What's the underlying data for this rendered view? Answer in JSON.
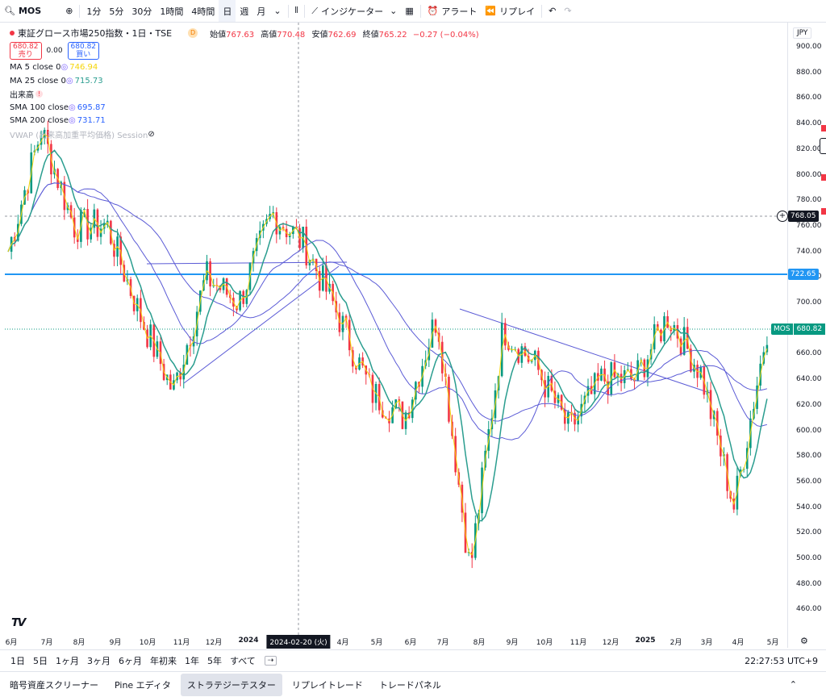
{
  "toolbar": {
    "symbol": "MOS",
    "intervals": [
      "1分",
      "5分",
      "30分",
      "1時間",
      "4時間",
      "日",
      "週",
      "月"
    ],
    "active_interval": "日",
    "indicators": "インジケーター",
    "alerts": "アラート",
    "replay": "リプレイ"
  },
  "legend": {
    "title": "東証グロース市場250指数・1日・TSE",
    "badge": "D",
    "open_label": "始値",
    "open": "767.63",
    "high_label": "高値",
    "high": "770.48",
    "low_label": "安値",
    "low": "762.69",
    "close_label": "終値",
    "close": "765.22",
    "change": "−0.27 (−0.04%)",
    "sell_price": "680.82",
    "sell_label": "売り",
    "spread": "0.00",
    "buy_price": "680.82",
    "buy_label": "買い",
    "indicators": [
      {
        "name": "MA 5 close 0",
        "value": "746.94",
        "color": "#f5d50a"
      },
      {
        "name": "MA 25 close 0",
        "value": "715.73",
        "color": "#2a9d8f"
      },
      {
        "name": "出来高",
        "value": "!",
        "color": "#f23645"
      },
      {
        "name": "SMA 100 close",
        "value": "695.87",
        "color": "#2962ff"
      },
      {
        "name": "SMA 200 close",
        "value": "731.71",
        "color": "#2962ff"
      },
      {
        "name": "VWAP (出来高加重平均価格) Session",
        "value": "",
        "color": "#b2b5be"
      }
    ]
  },
  "yaxis": {
    "currency": "JPY",
    "ticks": [
      "900.00",
      "880.00",
      "860.00",
      "840.00",
      "820.00",
      "800.00",
      "780.00",
      "760.00",
      "740.00",
      "720.00",
      "700.00",
      "680.00",
      "660.00",
      "640.00",
      "620.00",
      "600.00",
      "580.00",
      "560.00",
      "540.00",
      "520.00",
      "500.00",
      "480.00",
      "460.00"
    ],
    "crosshair_price": "768.05",
    "hline_price": "722.65",
    "last_symbol": "MOS",
    "last_price": "680.82"
  },
  "xaxis": {
    "labels": [
      "6月",
      "7月",
      "8月",
      "9月",
      "10月",
      "11月",
      "12月",
      "2024",
      "2024-02-20 (火)",
      "4月",
      "5月",
      "6月",
      "7月",
      "8月",
      "9月",
      "10月",
      "11月",
      "12月",
      "2025",
      "2月",
      "3月",
      "4月",
      "5月"
    ]
  },
  "colors": {
    "up": "#089981",
    "down": "#f23645",
    "hline": "#2196f3",
    "ma5": "#f5d50a",
    "ma25": "#2a9d8f",
    "sma": "#5b5bd6"
  },
  "ranges": [
    "1日",
    "5日",
    "1ヶ月",
    "3ヶ月",
    "6ヶ月",
    "年初来",
    "1年",
    "5年",
    "すべて"
  ],
  "clock": "22:27:53 UTC+9",
  "bottom_tabs": [
    "暗号資産スクリーナー",
    "Pine エディタ",
    "ストラテジーテスター",
    "リプレイトレード",
    "トレードパネル"
  ],
  "active_bottom_tab": "ストラテジーテスター",
  "chart_data": {
    "type": "line",
    "x": [
      "2023-06",
      "2023-07",
      "2023-08",
      "2023-09",
      "2023-10",
      "2023-11",
      "2023-12",
      "2024-01",
      "2024-02",
      "2024-03",
      "2024-04",
      "2024-05",
      "2024-06",
      "2024-07",
      "2024-08",
      "2024-09",
      "2024-10",
      "2024-11",
      "2024-12",
      "2025-01",
      "2025-02",
      "2025-03",
      "2025-04",
      "2025-05"
    ],
    "series": [
      {
        "values": [
          740,
          835,
          760,
          760,
          690,
          630,
          720,
          700,
          770,
          745,
          690,
          630,
          610,
          690,
          490,
          680,
          650,
          600,
          640,
          640,
          690,
          645,
          540,
          680
        ]
      }
    ],
    "ylim": [
      450,
      910
    ]
  }
}
